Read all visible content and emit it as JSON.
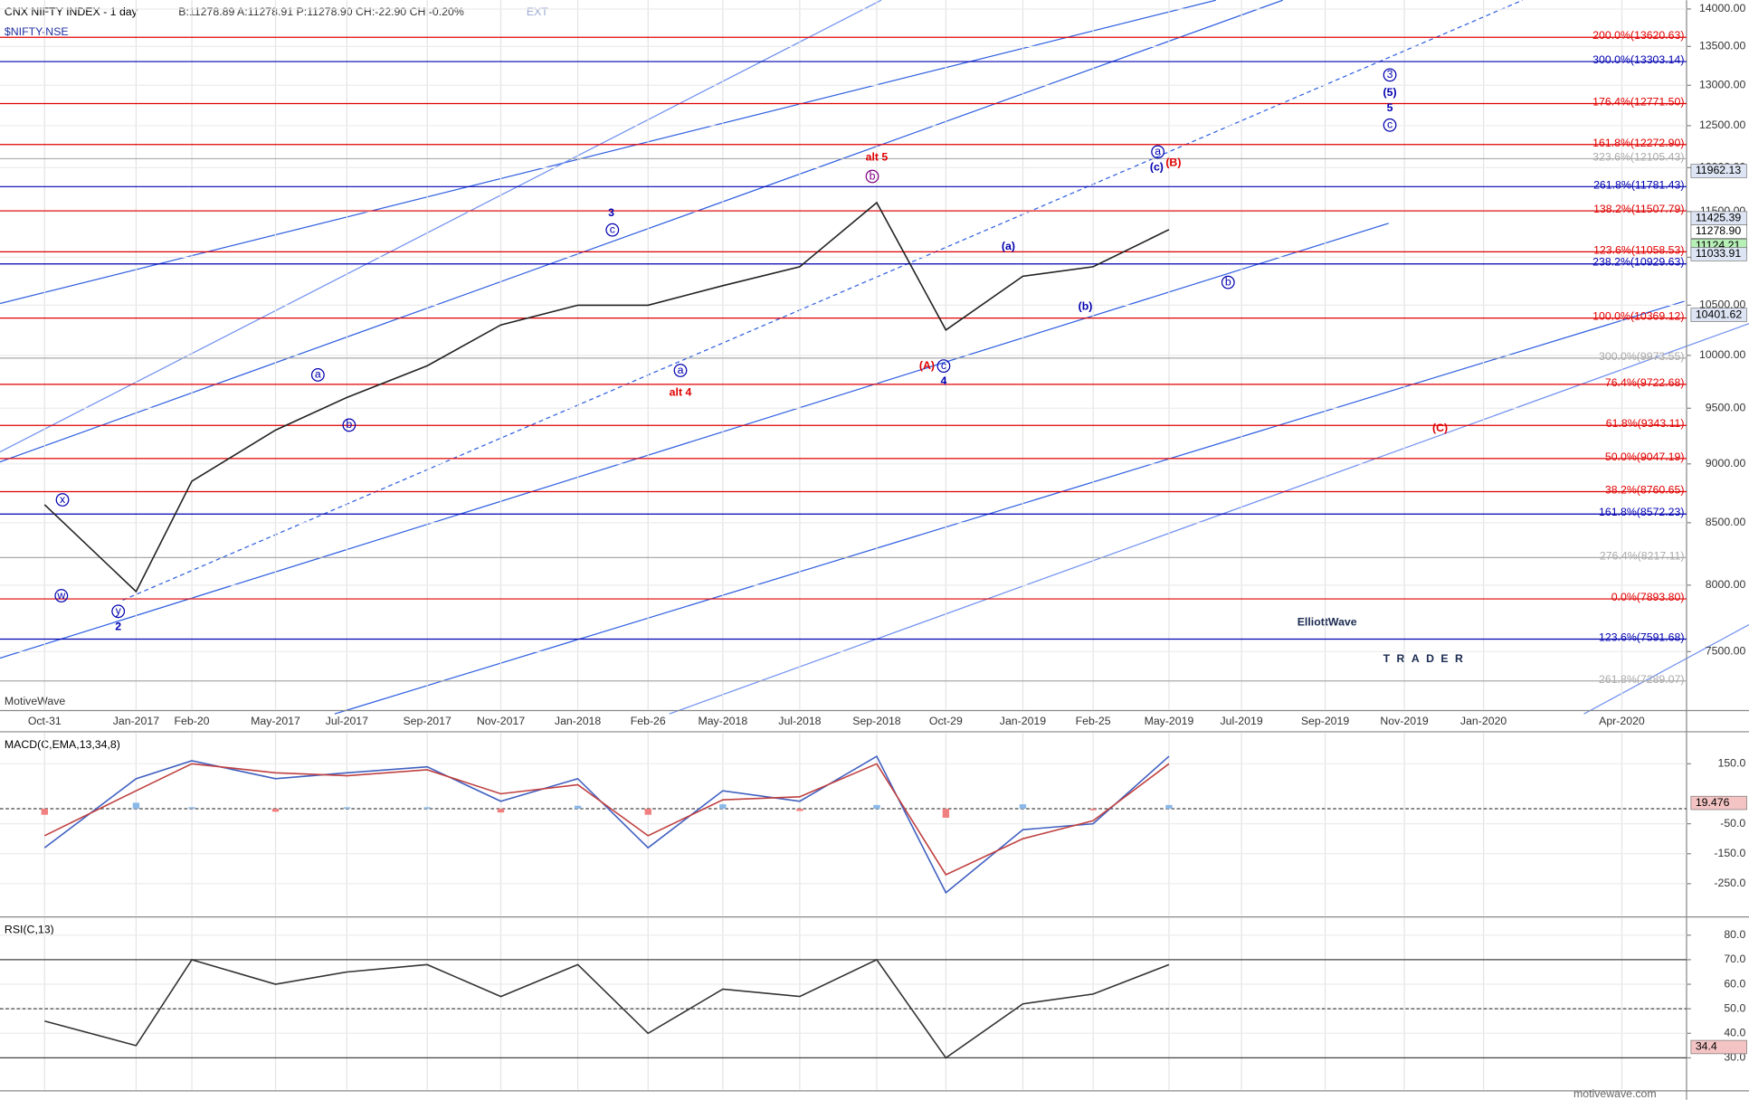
{
  "chart_data": [
    {
      "type": "line",
      "title": "CNX NIFTY INDEX - 1 day",
      "subtitle": "$NIFTY-NSE",
      "quote": "B:11278.89 A:11278.91 P:11278.90 CH:-22.90 CH:-0.20%",
      "quote_flag": "EXT",
      "source": "MotiveWave",
      "logo": [
        "ElliottWave",
        "TRADER"
      ],
      "footer": "motivewave.com",
      "log_scale": true,
      "categories": [
        "Oct-31",
        "Jan-2017",
        "Feb-20",
        "May-2017",
        "Jul-2017",
        "Sep-2017",
        "Nov-2017",
        "Jan-2018",
        "Feb-26",
        "May-2018",
        "Jul-2018",
        "Sep-2018",
        "Oct-29",
        "Jan-2019",
        "Feb-25",
        "May-2019",
        "Jul-2019",
        "Sep-2019",
        "Nov-2019",
        "Jan-2020",
        "Apr-2020"
      ],
      "series": [
        {
          "color": "#222222",
          "values": [
            8650,
            7950,
            8850,
            9300,
            9600,
            9900,
            10300,
            10500,
            10500,
            10700,
            10900,
            11600,
            10250,
            10800,
            10900,
            11300,
            null,
            null,
            null,
            null,
            null
          ]
        }
      ],
      "ylim": [
        7090,
        14120
      ],
      "yticks": [
        {
          "value": 7500,
          "label": "7500.00"
        },
        {
          "value": 8000,
          "label": "8000.00"
        },
        {
          "value": 8500,
          "label": "8500.00"
        },
        {
          "value": 9000,
          "label": "9000.00"
        },
        {
          "value": 9500,
          "label": "9500.00"
        },
        {
          "value": 10000,
          "label": "10000.00"
        },
        {
          "value": 10500,
          "label": "10500.00"
        },
        {
          "value": 11000,
          "label": "11000.00"
        },
        {
          "value": 11500,
          "label": "11500.00"
        },
        {
          "value": 12000,
          "label": "12000.00"
        },
        {
          "value": 12500,
          "label": "12500.00"
        },
        {
          "value": 13000,
          "label": "13000.00"
        },
        {
          "value": 13500,
          "label": "13500.00"
        },
        {
          "value": 14000,
          "label": "14000.00"
        }
      ],
      "levels": [
        {
          "label": "200.0%(13620.63)",
          "value": 13620.63,
          "color": "#e00000"
        },
        {
          "label": "300.0%(13303.14)",
          "value": 13303.14,
          "color": "#0000b0"
        },
        {
          "label": "176.4%(12771.50)",
          "value": 12771.5,
          "color": "#e00000"
        },
        {
          "label": "161.8%(12272.90)",
          "value": 12272.9,
          "color": "#e00000"
        },
        {
          "label": "323.6%(12105.43)",
          "value": 12105.43,
          "color": "#aaaaaa"
        },
        {
          "label": "261.8%(11781.43)",
          "value": 11781.43,
          "color": "#0000b0"
        },
        {
          "label": "138.2%(11507.79)",
          "value": 11507.79,
          "color": "#e00000"
        },
        {
          "label": "123.6%(11058.53)",
          "value": 11058.53,
          "color": "#e00000"
        },
        {
          "label": "238.2%(10929.63)",
          "value": 10929.63,
          "color": "#0000b0"
        },
        {
          "label": "100.0%(10369.12)",
          "value": 10369.12,
          "color": "#e00000"
        },
        {
          "label": "300.0%(9973.55)",
          "value": 9973.55,
          "color": "#aaaaaa"
        },
        {
          "label": "76.4%(9722.68)",
          "value": 9722.68,
          "color": "#e00000"
        },
        {
          "label": "61.8%(9343.11)",
          "value": 9343.11,
          "color": "#e00000"
        },
        {
          "label": "50.0%(9047.19)",
          "value": 9047.19,
          "color": "#e00000"
        },
        {
          "label": "38.2%(8760.65)",
          "value": 8760.65,
          "color": "#e00000"
        },
        {
          "label": "161.8%(8572.23)",
          "value": 8572.23,
          "color": "#0000b0"
        },
        {
          "label": "276.4%(8217.11)",
          "value": 8217.11,
          "color": "#aaaaaa"
        },
        {
          "label": "0.0%(7893.80)",
          "value": 7893.8,
          "color": "#e00000"
        },
        {
          "label": "123.6%(7591.68)",
          "value": 7591.68,
          "color": "#0000b0"
        },
        {
          "label": "261.8%(7289.07)",
          "value": 7289.07,
          "color": "#aaaaaa"
        }
      ],
      "price_boxes": [
        {
          "value": 11962.13,
          "label": "11962.13",
          "color": "#dde4f4"
        },
        {
          "value": 11425.39,
          "label": "11425.39",
          "color": "#dde4f4"
        },
        {
          "value": 11278.9,
          "label": "11278.90",
          "color": "#ffffff"
        },
        {
          "value": 11124.21,
          "label": "11124.21",
          "color": "#b6f0b6"
        },
        {
          "value": 11033.91,
          "label": "11033.91",
          "color": "#dde4f4"
        },
        {
          "value": 10401.62,
          "label": "10401.62",
          "color": "#dde4f4"
        }
      ],
      "annotations": [
        {
          "text": "3",
          "color": "#0000b0",
          "circled": false
        },
        {
          "text": "c",
          "color": "#0000b0",
          "circled": true
        },
        {
          "text": "a",
          "color": "#0000b0",
          "circled": true
        },
        {
          "text": "b",
          "color": "#0000b0",
          "circled": true
        },
        {
          "text": "x",
          "color": "#0000b0",
          "circled": true
        },
        {
          "text": "w",
          "color": "#0000b0",
          "circled": true
        },
        {
          "text": "y",
          "color": "#0000b0",
          "circled": true
        },
        {
          "text": "2",
          "color": "#0000b0",
          "circled": false
        },
        {
          "text": "alt 5",
          "color": "#e00000",
          "circled": false
        },
        {
          "text": "b",
          "color": "#800080",
          "circled": true
        },
        {
          "text": "alt 4",
          "color": "#e00000",
          "circled": false
        },
        {
          "text": "a",
          "color": "#0000b0",
          "circled": true
        },
        {
          "text": "(A)",
          "color": "#e00000",
          "circled": false
        },
        {
          "text": "c",
          "color": "#0000b0",
          "circled": true
        },
        {
          "text": "4",
          "color": "#0000b0",
          "circled": false
        },
        {
          "text": "(a)",
          "color": "#0000b0",
          "circled": false
        },
        {
          "text": "(b)",
          "color": "#0000b0",
          "circled": false
        },
        {
          "text": "(c)",
          "color": "#0000b0",
          "circled": false
        },
        {
          "text": "a",
          "color": "#0000b0",
          "circled": true
        },
        {
          "text": "(B)",
          "color": "#e00000",
          "circled": false
        },
        {
          "text": "b",
          "color": "#0000b0",
          "circled": true
        },
        {
          "text": "3",
          "color": "#0000b0",
          "circled": true
        },
        {
          "text": "(5)",
          "color": "#0000b0",
          "circled": false
        },
        {
          "text": "5",
          "color": "#0000b0",
          "circled": false
        },
        {
          "text": "c",
          "color": "#0000b0",
          "circled": true
        },
        {
          "text": "(C)",
          "color": "#e00000",
          "circled": false
        }
      ]
    },
    {
      "type": "line",
      "title": "MACD(C,EMA,13,34,8)",
      "series": [
        {
          "color": "#4060c0",
          "values": [
            -130,
            100,
            160,
            100,
            120,
            140,
            25,
            100,
            -130,
            60,
            25,
            175,
            -280,
            -70,
            -50,
            175,
            null,
            null,
            null,
            null,
            null
          ]
        },
        {
          "color": "#c04040",
          "values": [
            -90,
            60,
            150,
            120,
            110,
            130,
            50,
            80,
            -90,
            30,
            40,
            150,
            -220,
            -100,
            -40,
            150,
            null,
            null,
            null,
            null,
            null
          ]
        }
      ],
      "ylim": [
        -357,
        253
      ],
      "yticks": [
        {
          "value": 150,
          "label": "150.0"
        },
        {
          "value": -50,
          "label": "-50.0"
        },
        {
          "value": -150,
          "label": "-150.0"
        },
        {
          "value": -250,
          "label": "-250.0"
        }
      ],
      "reference": 0,
      "price_box": {
        "value": 19.476,
        "label": "19.476"
      }
    },
    {
      "type": "line",
      "title": "RSI(C,13)",
      "series": [
        {
          "color": "#333333",
          "values": [
            45,
            35,
            70,
            60,
            65,
            68,
            55,
            68,
            40,
            58,
            55,
            70,
            30,
            52,
            56,
            68,
            null,
            null,
            null,
            null,
            null
          ]
        }
      ],
      "ylim": [
        17,
        87
      ],
      "yticks": [
        {
          "value": 80,
          "label": "80.0"
        },
        {
          "value": 70,
          "label": "70.0"
        },
        {
          "value": 60,
          "label": "60.0"
        },
        {
          "value": 50,
          "label": "50.0"
        },
        {
          "value": 40,
          "label": "40.0"
        },
        {
          "value": 30,
          "label": "30.0"
        }
      ],
      "reference_lines": [
        70,
        50,
        30
      ],
      "price_box": {
        "value": 34.4,
        "label": "34.4"
      }
    }
  ]
}
